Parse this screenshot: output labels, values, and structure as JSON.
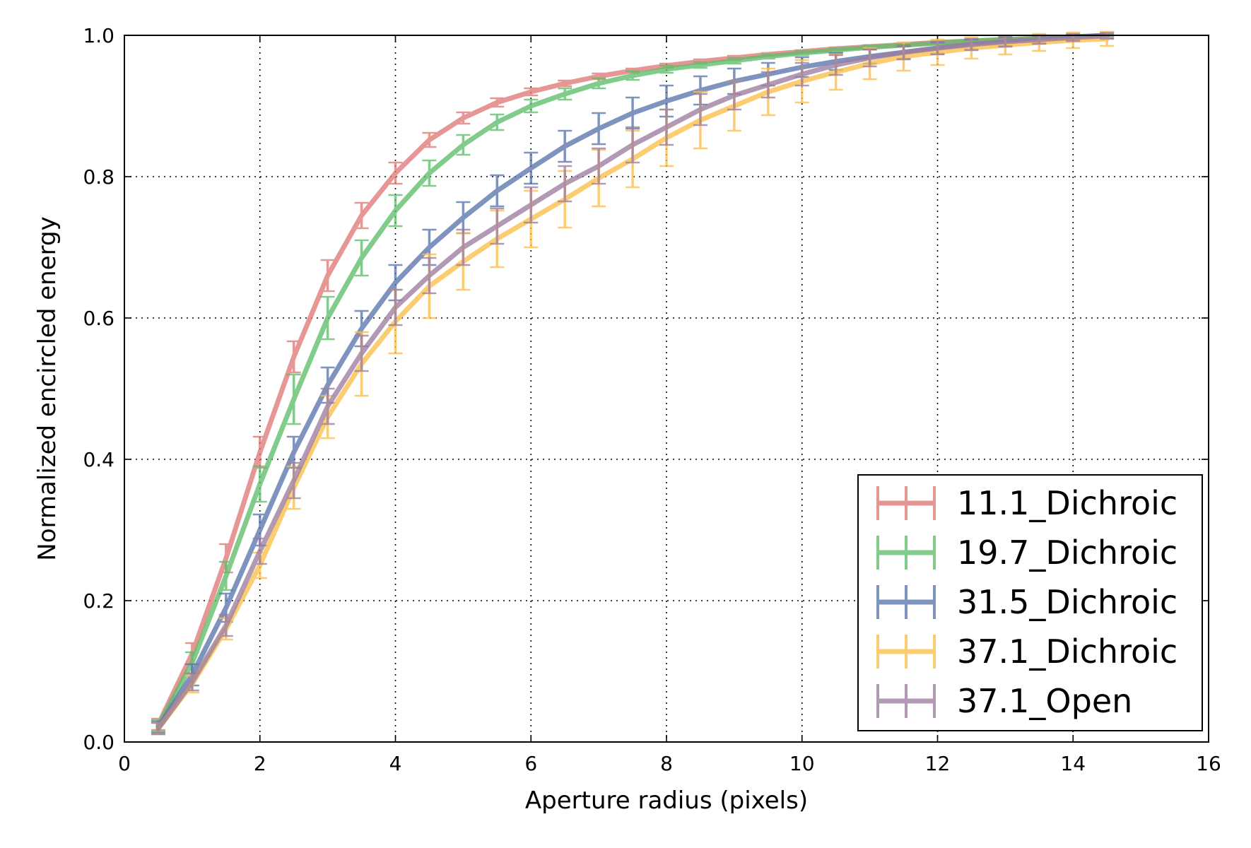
{
  "chart_data": {
    "type": "line",
    "title": "",
    "xlabel": "Aperture radius (pixels)",
    "ylabel": "Normalized encircled energy",
    "xlim": [
      0,
      16
    ],
    "ylim": [
      0,
      1.0
    ],
    "xticks": [
      "0",
      "2",
      "4",
      "6",
      "8",
      "10",
      "12",
      "14",
      "16"
    ],
    "yticks": [
      "0.0",
      "0.2",
      "0.4",
      "0.6",
      "0.8",
      "1.0"
    ],
    "grid": true,
    "legend_position": "lower-right",
    "x": [
      0.5,
      1.0,
      1.5,
      2.0,
      2.5,
      3.0,
      3.5,
      4.0,
      4.5,
      5.0,
      5.5,
      6.0,
      6.5,
      7.0,
      7.5,
      8.0,
      8.5,
      9.0,
      9.5,
      10.0,
      10.5,
      11.0,
      11.5,
      12.0,
      12.5,
      13.0,
      13.5,
      14.0,
      14.5
    ],
    "series": [
      {
        "name": "11.1_Dichroic",
        "color": "#e07b78",
        "values": [
          0.025,
          0.125,
          0.26,
          0.41,
          0.545,
          0.66,
          0.745,
          0.805,
          0.852,
          0.883,
          0.905,
          0.92,
          0.932,
          0.942,
          0.95,
          0.957,
          0.963,
          0.968,
          0.973,
          0.977,
          0.981,
          0.984,
          0.987,
          0.99,
          0.992,
          0.994,
          0.996,
          0.998,
          1.0
        ],
        "errors": [
          0.008,
          0.015,
          0.02,
          0.022,
          0.022,
          0.022,
          0.018,
          0.015,
          0.01,
          0.008,
          0.006,
          0.005,
          0.004,
          0.004,
          0.003,
          0.003,
          0.003,
          0.003,
          0.002,
          0.002,
          0.002,
          0.002,
          0.002,
          0.002,
          0.002,
          0.001,
          0.001,
          0.001,
          0.001
        ]
      },
      {
        "name": "19.7_Dichroic",
        "color": "#5ebd6b",
        "values": [
          0.023,
          0.112,
          0.235,
          0.365,
          0.485,
          0.6,
          0.685,
          0.752,
          0.805,
          0.845,
          0.877,
          0.9,
          0.917,
          0.932,
          0.943,
          0.952,
          0.958,
          0.964,
          0.97,
          0.975,
          0.979,
          0.983,
          0.986,
          0.989,
          0.992,
          0.994,
          0.996,
          0.998,
          1.0
        ],
        "errors": [
          0.008,
          0.015,
          0.02,
          0.025,
          0.035,
          0.03,
          0.025,
          0.022,
          0.018,
          0.014,
          0.011,
          0.009,
          0.008,
          0.007,
          0.006,
          0.005,
          0.004,
          0.004,
          0.003,
          0.003,
          0.003,
          0.003,
          0.002,
          0.002,
          0.002,
          0.002,
          0.001,
          0.001,
          0.001
        ]
      },
      {
        "name": "31.5_Dichroic",
        "color": "#5b76ac",
        "values": [
          0.021,
          0.095,
          0.19,
          0.3,
          0.41,
          0.505,
          0.585,
          0.65,
          0.7,
          0.742,
          0.78,
          0.812,
          0.843,
          0.868,
          0.89,
          0.907,
          0.922,
          0.935,
          0.945,
          0.955,
          0.963,
          0.97,
          0.976,
          0.982,
          0.987,
          0.991,
          0.994,
          0.997,
          1.0
        ],
        "errors": [
          0.008,
          0.015,
          0.02,
          0.022,
          0.022,
          0.025,
          0.025,
          0.025,
          0.025,
          0.022,
          0.022,
          0.022,
          0.022,
          0.022,
          0.022,
          0.022,
          0.02,
          0.018,
          0.016,
          0.014,
          0.012,
          0.01,
          0.009,
          0.008,
          0.007,
          0.006,
          0.005,
          0.004,
          0.004
        ]
      },
      {
        "name": "37.1_Dichroic",
        "color": "#fcbf49",
        "values": [
          0.019,
          0.082,
          0.16,
          0.25,
          0.36,
          0.46,
          0.535,
          0.595,
          0.645,
          0.68,
          0.712,
          0.74,
          0.768,
          0.798,
          0.825,
          0.855,
          0.88,
          0.9,
          0.92,
          0.935,
          0.948,
          0.96,
          0.97,
          0.976,
          0.982,
          0.986,
          0.99,
          0.993,
          0.995
        ],
        "errors": [
          0.008,
          0.012,
          0.015,
          0.018,
          0.03,
          0.03,
          0.045,
          0.045,
          0.045,
          0.04,
          0.04,
          0.04,
          0.04,
          0.04,
          0.04,
          0.04,
          0.04,
          0.035,
          0.033,
          0.03,
          0.025,
          0.022,
          0.02,
          0.018,
          0.015,
          0.013,
          0.012,
          0.011,
          0.01
        ]
      },
      {
        "name": "37.1_Open",
        "color": "#9e7ea0",
        "values": [
          0.019,
          0.085,
          0.165,
          0.27,
          0.37,
          0.475,
          0.55,
          0.615,
          0.66,
          0.7,
          0.73,
          0.76,
          0.79,
          0.815,
          0.845,
          0.87,
          0.895,
          0.915,
          0.93,
          0.945,
          0.958,
          0.968,
          0.976,
          0.982,
          0.987,
          0.991,
          0.994,
          0.997,
          0.999
        ],
        "errors": [
          0.008,
          0.012,
          0.015,
          0.018,
          0.025,
          0.025,
          0.025,
          0.025,
          0.025,
          0.025,
          0.025,
          0.025,
          0.025,
          0.025,
          0.025,
          0.025,
          0.022,
          0.02,
          0.018,
          0.016,
          0.014,
          0.012,
          0.01,
          0.009,
          0.008,
          0.007,
          0.006,
          0.005,
          0.004
        ]
      }
    ]
  }
}
